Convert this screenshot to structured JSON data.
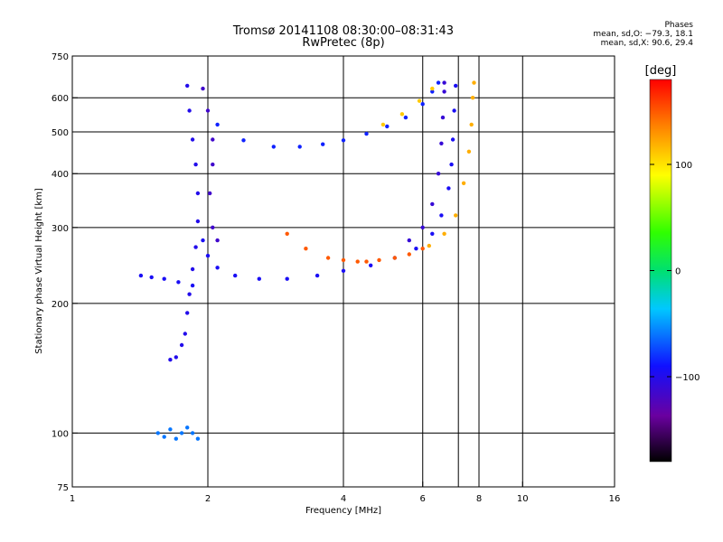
{
  "chart_data": {
    "type": "scatter",
    "title": "Tromsø 20141108 08:30:00–08:31:43",
    "subtitle": "RwPretec (8p)",
    "xlabel": "Frequency [MHz]",
    "ylabel": "Stationary phase Virtual Height [km]",
    "x_scale": "log",
    "y_scale": "log",
    "xlim": [
      1,
      16
    ],
    "ylim": [
      75,
      750
    ],
    "x_ticks": [
      "1",
      "2",
      "4",
      "6",
      "8",
      "10",
      "16"
    ],
    "x_tick_values": [
      1,
      2,
      4,
      6,
      8,
      10,
      16
    ],
    "x_grid_values": [
      2,
      4,
      6,
      7.2,
      8,
      10
    ],
    "y_ticks": [
      "75",
      "100",
      "200",
      "300",
      "400",
      "500",
      "600",
      "750"
    ],
    "y_tick_values": [
      75,
      100,
      200,
      300,
      400,
      500,
      600,
      750
    ],
    "grid": true,
    "phases_box": {
      "title": "Phases",
      "line_o": "mean, sd,O: −79.3, 18.1",
      "line_x": "mean, sd,X:  90.6, 29.4"
    },
    "colorbar": {
      "label": "[deg]",
      "range": [
        -180,
        180
      ],
      "ticks": [
        "100",
        "0",
        "−100"
      ],
      "tick_values": [
        100,
        0,
        -100
      ]
    },
    "traces": [
      {
        "name": "",
        "phase": -95,
        "points": [
          [
            1.42,
            232
          ],
          [
            1.5,
            230
          ],
          [
            1.6,
            228
          ],
          [
            1.72,
            224
          ],
          [
            1.85,
            220
          ]
        ]
      },
      {
        "name": "",
        "phase": -95,
        "points": [
          [
            1.95,
            280
          ],
          [
            2.0,
            258
          ],
          [
            2.1,
            242
          ],
          [
            2.3,
            232
          ],
          [
            2.6,
            228
          ],
          [
            3.0,
            228
          ],
          [
            3.5,
            232
          ],
          [
            4.0,
            238
          ],
          [
            4.6,
            245
          ],
          [
            5.2,
            255
          ],
          [
            5.8,
            268
          ],
          [
            6.3,
            290
          ],
          [
            6.6,
            320
          ],
          [
            6.85,
            370
          ],
          [
            6.95,
            420
          ],
          [
            7.0,
            480
          ],
          [
            7.05,
            560
          ],
          [
            7.1,
            640
          ]
        ]
      },
      {
        "name": "",
        "phase": -110,
        "points": [
          [
            5.6,
            280
          ],
          [
            6.0,
            300
          ],
          [
            6.3,
            340
          ],
          [
            6.5,
            400
          ],
          [
            6.6,
            470
          ],
          [
            6.65,
            540
          ],
          [
            6.7,
            620
          ],
          [
            6.7,
            650
          ]
        ]
      },
      {
        "name": "",
        "phase": -85,
        "points": [
          [
            2.1,
            520
          ],
          [
            2.4,
            478
          ],
          [
            2.8,
            462
          ],
          [
            3.2,
            462
          ],
          [
            3.6,
            468
          ],
          [
            4.0,
            478
          ],
          [
            4.5,
            495
          ],
          [
            5.0,
            515
          ],
          [
            5.5,
            540
          ],
          [
            6.0,
            580
          ],
          [
            6.3,
            620
          ],
          [
            6.5,
            650
          ]
        ]
      },
      {
        "name": "",
        "phase": 150,
        "points": [
          [
            3.0,
            290
          ],
          [
            3.3,
            268
          ],
          [
            3.7,
            255
          ],
          [
            4.0,
            252
          ],
          [
            4.3,
            250
          ]
        ]
      },
      {
        "name": "",
        "phase": 150,
        "points": [
          [
            4.5,
            250
          ],
          [
            4.8,
            252
          ],
          [
            5.2,
            255
          ],
          [
            5.6,
            260
          ],
          [
            6.0,
            268
          ]
        ]
      },
      {
        "name": "",
        "phase": 120,
        "points": [
          [
            6.2,
            272
          ],
          [
            6.7,
            290
          ],
          [
            7.1,
            320
          ],
          [
            7.4,
            380
          ],
          [
            7.6,
            450
          ],
          [
            7.7,
            520
          ],
          [
            7.75,
            600
          ],
          [
            7.8,
            650
          ]
        ]
      },
      {
        "name": "",
        "phase": 110,
        "points": [
          [
            4.9,
            520
          ],
          [
            5.4,
            550
          ],
          [
            5.9,
            590
          ],
          [
            6.3,
            630
          ]
        ]
      },
      {
        "name": "",
        "phase": -100,
        "points": [
          [
            1.8,
            640
          ],
          [
            1.82,
            560
          ],
          [
            1.85,
            480
          ],
          [
            1.88,
            420
          ],
          [
            1.9,
            360
          ],
          [
            1.9,
            310
          ],
          [
            1.88,
            270
          ],
          [
            1.85,
            240
          ],
          [
            1.82,
            210
          ],
          [
            1.8,
            190
          ],
          [
            1.78,
            170
          ],
          [
            1.75,
            160
          ],
          [
            1.7,
            150
          ],
          [
            1.65,
            148
          ]
        ]
      },
      {
        "name": "",
        "phase": -115,
        "points": [
          [
            1.95,
            630
          ],
          [
            2.0,
            560
          ],
          [
            2.05,
            480
          ],
          [
            2.05,
            420
          ],
          [
            2.02,
            360
          ],
          [
            2.05,
            300
          ],
          [
            2.1,
            280
          ]
        ]
      },
      {
        "name": "",
        "phase": -60,
        "points": [
          [
            1.55,
            100
          ],
          [
            1.6,
            98
          ],
          [
            1.65,
            102
          ],
          [
            1.7,
            97
          ],
          [
            1.75,
            100
          ],
          [
            1.8,
            103
          ],
          [
            1.85,
            100
          ],
          [
            1.9,
            97
          ]
        ]
      }
    ]
  }
}
